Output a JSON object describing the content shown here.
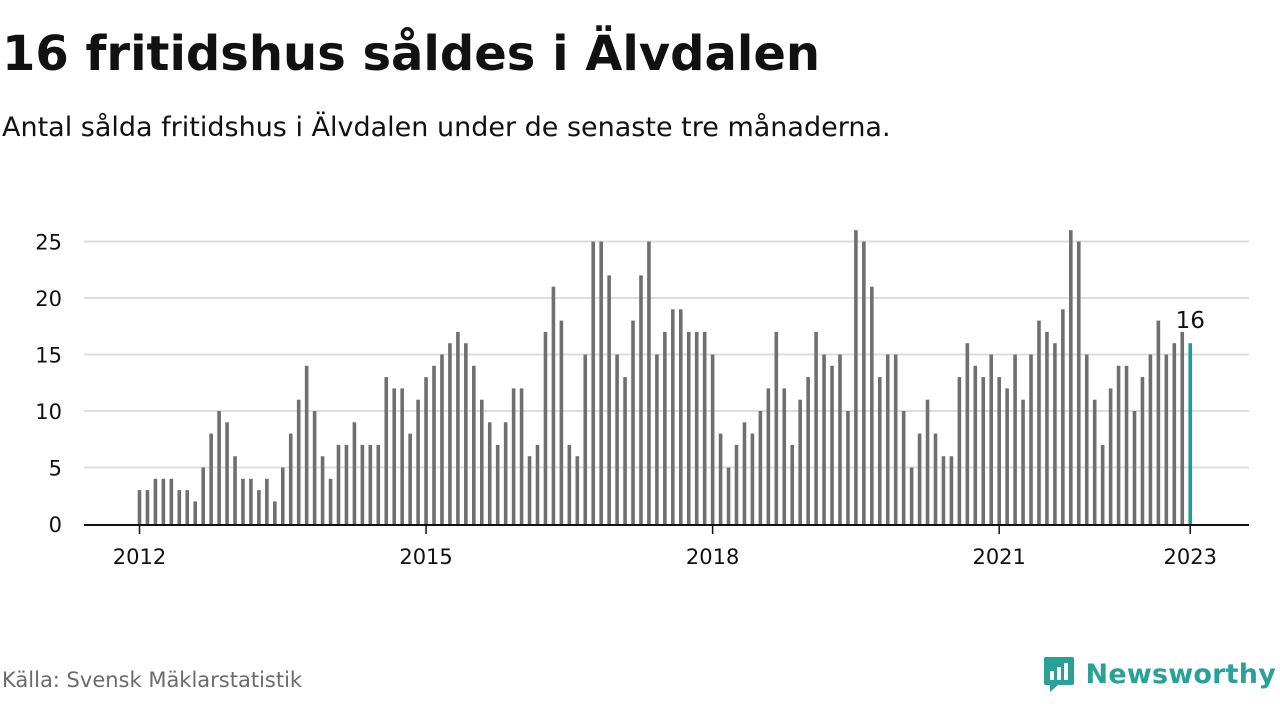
{
  "title": "16 fritidshus såldes i Älvdalen",
  "subtitle": "Antal sålda fritidshus i Älvdalen under de senaste tre månaderna.",
  "source": "Källa: Svensk Mäklarstatistik",
  "brand": {
    "name": "Newsworthy",
    "icon": "newsworthy-logo-icon",
    "color": "#2aa198"
  },
  "colors": {
    "bar": "#6f6f6f",
    "highlight": "#1a9e97",
    "grid": "#dddddd",
    "axis": "#111111"
  },
  "chart_data": {
    "type": "bar",
    "title": "",
    "xlabel": "",
    "ylabel": "",
    "grid": true,
    "ylim": [
      0,
      26
    ],
    "yticks": [
      0,
      5,
      10,
      15,
      20,
      25
    ],
    "x_start": "2011-12",
    "x_end": "2023-01",
    "xticks": [
      "2012",
      "2015",
      "2018",
      "2021",
      "2023"
    ],
    "xtick_dates": [
      "2012-01",
      "2015-01",
      "2018-01",
      "2021-01",
      "2023-01"
    ],
    "series": [
      {
        "start": "2012-01",
        "values": [
          3,
          3,
          4,
          4,
          4,
          3,
          3,
          2,
          5,
          8,
          10,
          9,
          6,
          4,
          4,
          3,
          4,
          2,
          5,
          8,
          11,
          14,
          10,
          6,
          4,
          7,
          7,
          9,
          7,
          7,
          7,
          13,
          12,
          12,
          8,
          11,
          13,
          14,
          15,
          16,
          17,
          16,
          14,
          11,
          9,
          7,
          9,
          12,
          12,
          6,
          7,
          17,
          21,
          18,
          7,
          6,
          15,
          25,
          25,
          22,
          15,
          13,
          18,
          22,
          25,
          15,
          17,
          19,
          19,
          17,
          17,
          17,
          15,
          8,
          5,
          7,
          9,
          8,
          10,
          12,
          17,
          12,
          7,
          11,
          13,
          17,
          15,
          14,
          15,
          10,
          26,
          25,
          21,
          13,
          15,
          15,
          10,
          5,
          8,
          11,
          8,
          6,
          6,
          13,
          16,
          14,
          13,
          15,
          13,
          12,
          15,
          11,
          15,
          18,
          17,
          16,
          19,
          26,
          25,
          15,
          11,
          7,
          12,
          14,
          14,
          10,
          13,
          15,
          18,
          15,
          16,
          17,
          16
        ]
      }
    ],
    "highlight": {
      "date": "2023-01",
      "value": 16,
      "label": "16"
    }
  }
}
